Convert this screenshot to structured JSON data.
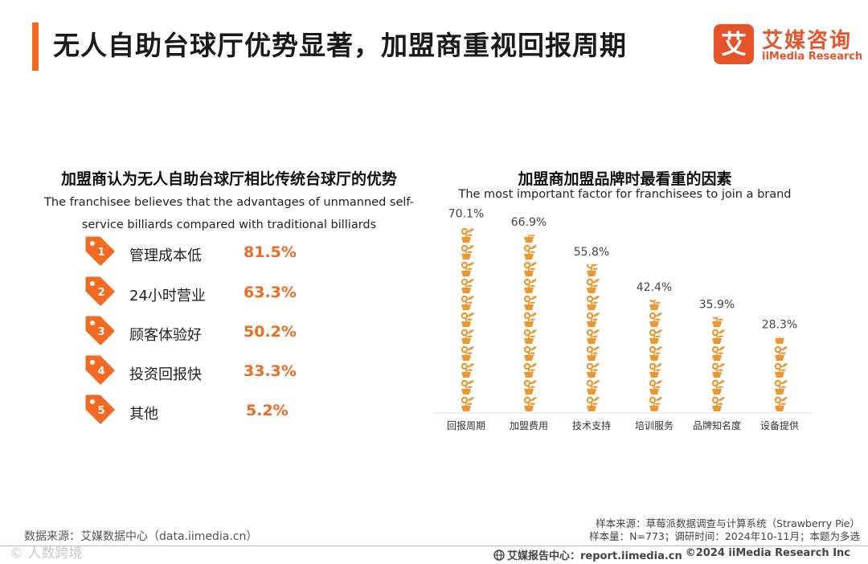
{
  "header": {
    "title": "无人自助台球厅优势显著，加盟商重视回报周期",
    "logo_mark": "艾",
    "logo_cn": "艾媒咨询",
    "logo_en": "iiMedia Research"
  },
  "left_panel": {
    "title": "加盟商认为无人自助台球厅相比传统台球厅的优势",
    "subtitle_line1": "The franchisee believes that the advantages of unmanned self-",
    "subtitle_line2": "service billiards compared with traditional billiards",
    "items": [
      {
        "rank": "1",
        "label": "管理成本低",
        "value": "81.5%"
      },
      {
        "rank": "2",
        "label": "24小时营业",
        "value": "63.3%"
      },
      {
        "rank": "3",
        "label": "顾客体验好",
        "value": "50.2%"
      },
      {
        "rank": "4",
        "label": "投资回报快",
        "value": "33.3%"
      },
      {
        "rank": "5",
        "label": "其他",
        "value": "5.2%"
      }
    ]
  },
  "chart_data": {
    "type": "bar",
    "title": "加盟商加盟品牌时最看重的因素",
    "subtitle": "The most important factor for franchisees to join a brand",
    "categories": [
      "回报周期",
      "加盟费用",
      "技术支持",
      "培训服务",
      "品牌知名度",
      "设备提供"
    ],
    "values": [
      70.1,
      66.9,
      55.8,
      42.4,
      35.9,
      28.3
    ],
    "value_labels": [
      "70.1%",
      "66.9%",
      "55.8%",
      "42.4%",
      "35.9%",
      "28.3%"
    ],
    "ylim": [
      0,
      100
    ],
    "unit": "%",
    "color": "#f0962e"
  },
  "footer": {
    "source_left": "数据来源：艾媒数据中心（data.iimedia.cn）",
    "sample_source": "样本来源：草莓派数据调查与计算系统（Strawberry Pie）",
    "sample_info": "样本量：N=773；调研时间：2024年10-11月；本题为多选",
    "report_center": "艾媒报告中心：report.iimedia.cn",
    "copyright": "©2024  iiMedia Research  Inc",
    "watermark": "© 人数跨境"
  },
  "colors": {
    "accent": "#f26a21",
    "brand": "#e8542a",
    "bar": "#f0962e"
  }
}
